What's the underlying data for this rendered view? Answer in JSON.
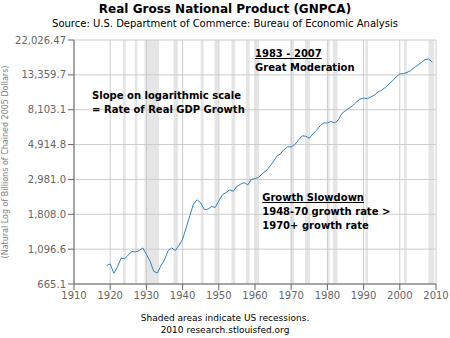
{
  "chart_data": {
    "type": "line",
    "title": "Real Gross National Product (GNPCA)",
    "subtitle": "Source: U.S. Department of Commerce: Bureau of Economic Analysis",
    "xlabel": "Shaded areas indicate US recessions.\n2010 research.stlouisfed.org",
    "ylabel": "(Natural Log of Billions of Chained 2005 Dollars)",
    "annotations": [
      [
        "Slope on logarithmic scale",
        "= Rate of Real GDP Growth"
      ],
      [
        "1983 - 2007",
        "Great Moderation"
      ],
      [
        "Growth Slowdown",
        "1948-70 growth rate >",
        "1970+ growth rate"
      ]
    ],
    "log": "y",
    "grid": true,
    "xlim": [
      1910,
      2010
    ],
    "xticks": [
      1910,
      1920,
      1930,
      1940,
      1950,
      1960,
      1970,
      1980,
      1990,
      2000,
      2010
    ],
    "ylim": [
      665.1,
      22026.47
    ],
    "yticks": [
      665.1,
      {
        "value": 1096.6,
        "label": "1,096.6"
      },
      {
        "value": 1808.0,
        "label": "1,808.0"
      },
      {
        "value": 2981.0,
        "label": "2,981.0"
      },
      {
        "value": 4914.8,
        "label": "4,914.8"
      },
      {
        "value": 8103.1,
        "label": "8,103.1"
      },
      {
        "value": 13359.7,
        "label": "13,359.7"
      },
      {
        "value": 22026.47,
        "label": "22,026.47"
      }
    ],
    "recessions": [
      [
        1923.5,
        1924.3
      ],
      [
        1926.8,
        1927.5
      ],
      [
        1929.5,
        1933.5
      ],
      [
        1937.5,
        1938.7
      ],
      [
        1945.0,
        1945.8
      ],
      [
        1948.8,
        1949.8
      ],
      [
        1953.5,
        1954.5
      ],
      [
        1957.5,
        1958.5
      ],
      [
        1960.2,
        1961.1
      ],
      [
        1969.8,
        1970.8
      ],
      [
        1973.8,
        1975.2
      ],
      [
        1980.0,
        1980.6
      ],
      [
        1981.5,
        1982.8
      ],
      [
        1990.5,
        1991.2
      ],
      [
        2001.2,
        2001.9
      ],
      [
        2007.9,
        2009.5
      ]
    ],
    "x": [
      1919,
      1920,
      1921,
      1922,
      1923,
      1924,
      1925,
      1926,
      1927,
      1928,
      1929,
      1930,
      1931,
      1932,
      1933,
      1934,
      1935,
      1936,
      1937,
      1938,
      1939,
      1940,
      1941,
      1942,
      1943,
      1944,
      1945,
      1946,
      1947,
      1948,
      1949,
      1950,
      1951,
      1952,
      1953,
      1954,
      1955,
      1956,
      1957,
      1958,
      1959,
      1960,
      1961,
      1962,
      1963,
      1964,
      1965,
      1966,
      1967,
      1968,
      1969,
      1970,
      1971,
      1972,
      1973,
      1974,
      1975,
      1976,
      1977,
      1978,
      1979,
      1980,
      1981,
      1982,
      1983,
      1984,
      1985,
      1986,
      1987,
      1988,
      1989,
      1990,
      1991,
      1992,
      1993,
      1994,
      1995,
      1996,
      1997,
      1998,
      1999,
      2000,
      2001,
      2002,
      2003,
      2004,
      2005,
      2006,
      2007,
      2008,
      2009
    ],
    "values": [
      866,
      887,
      775,
      849,
      962,
      958,
      1008,
      1059,
      1054,
      1074,
      1117,
      1016,
      924,
      799,
      779,
      862,
      940,
      1074,
      1116,
      1074,
      1156,
      1266,
      1490,
      1772,
      2094,
      2228,
      2132,
      1934,
      1947,
      2018,
      1994,
      2193,
      2395,
      2468,
      2567,
      2517,
      2699,
      2784,
      2847,
      2757,
      2977,
      3020,
      3069,
      3245,
      3362,
      3566,
      3828,
      4146,
      4295,
      4570,
      4754,
      4757,
      4920,
      5246,
      5572,
      5535,
      5388,
      5726,
      6027,
      6438,
      6701,
      6697,
      6843,
      6699,
      7000,
      7665,
      8007,
      8284,
      8604,
      9051,
      9438,
      9570,
      9481,
      9734,
      9996,
      10468,
      10715,
      11148,
      11693,
      12268,
      12963,
      13539,
      13608,
      13837,
      14197,
      14816,
      15366,
      15972,
      16640,
      16772,
      16033
    ]
  }
}
